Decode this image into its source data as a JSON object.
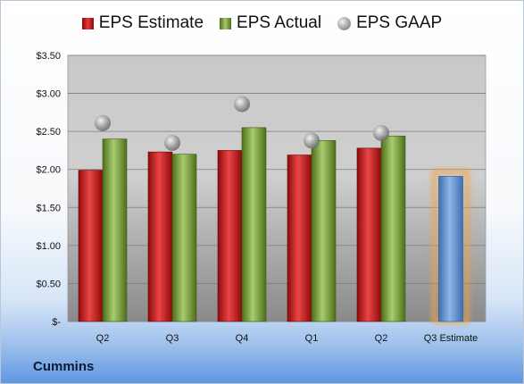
{
  "brand": "Cummins",
  "legend": {
    "estimate": "EPS Estimate",
    "actual": "EPS Actual",
    "gaap": "EPS GAAP"
  },
  "colors": {
    "estimate": "#d32020",
    "actual": "#8fb04a",
    "gaap": "#9a9a9a",
    "future_estimate": "#6f9fd8",
    "highlight": "#f5a040"
  },
  "chart_data": {
    "type": "bar",
    "categories": [
      "Q2",
      "Q3",
      "Q4",
      "Q1",
      "Q2",
      "Q3 Estimate"
    ],
    "series": [
      {
        "name": "EPS Estimate",
        "values": [
          1.99,
          2.23,
          2.25,
          2.19,
          2.28,
          null
        ]
      },
      {
        "name": "EPS Actual",
        "values": [
          2.4,
          2.2,
          2.55,
          2.38,
          2.44,
          null
        ]
      },
      {
        "name": "EPS GAAP",
        "values": [
          2.61,
          2.35,
          2.86,
          2.38,
          2.48,
          null
        ]
      }
    ],
    "future_estimate": {
      "category": "Q3 Estimate",
      "value": 1.91
    },
    "y_ticks": [
      "$-",
      "$0.50",
      "$1.00",
      "$1.50",
      "$2.00",
      "$2.50",
      "$3.00",
      "$3.50"
    ],
    "ylim": [
      0,
      3.5
    ],
    "grid": true,
    "legend_position": "top"
  }
}
